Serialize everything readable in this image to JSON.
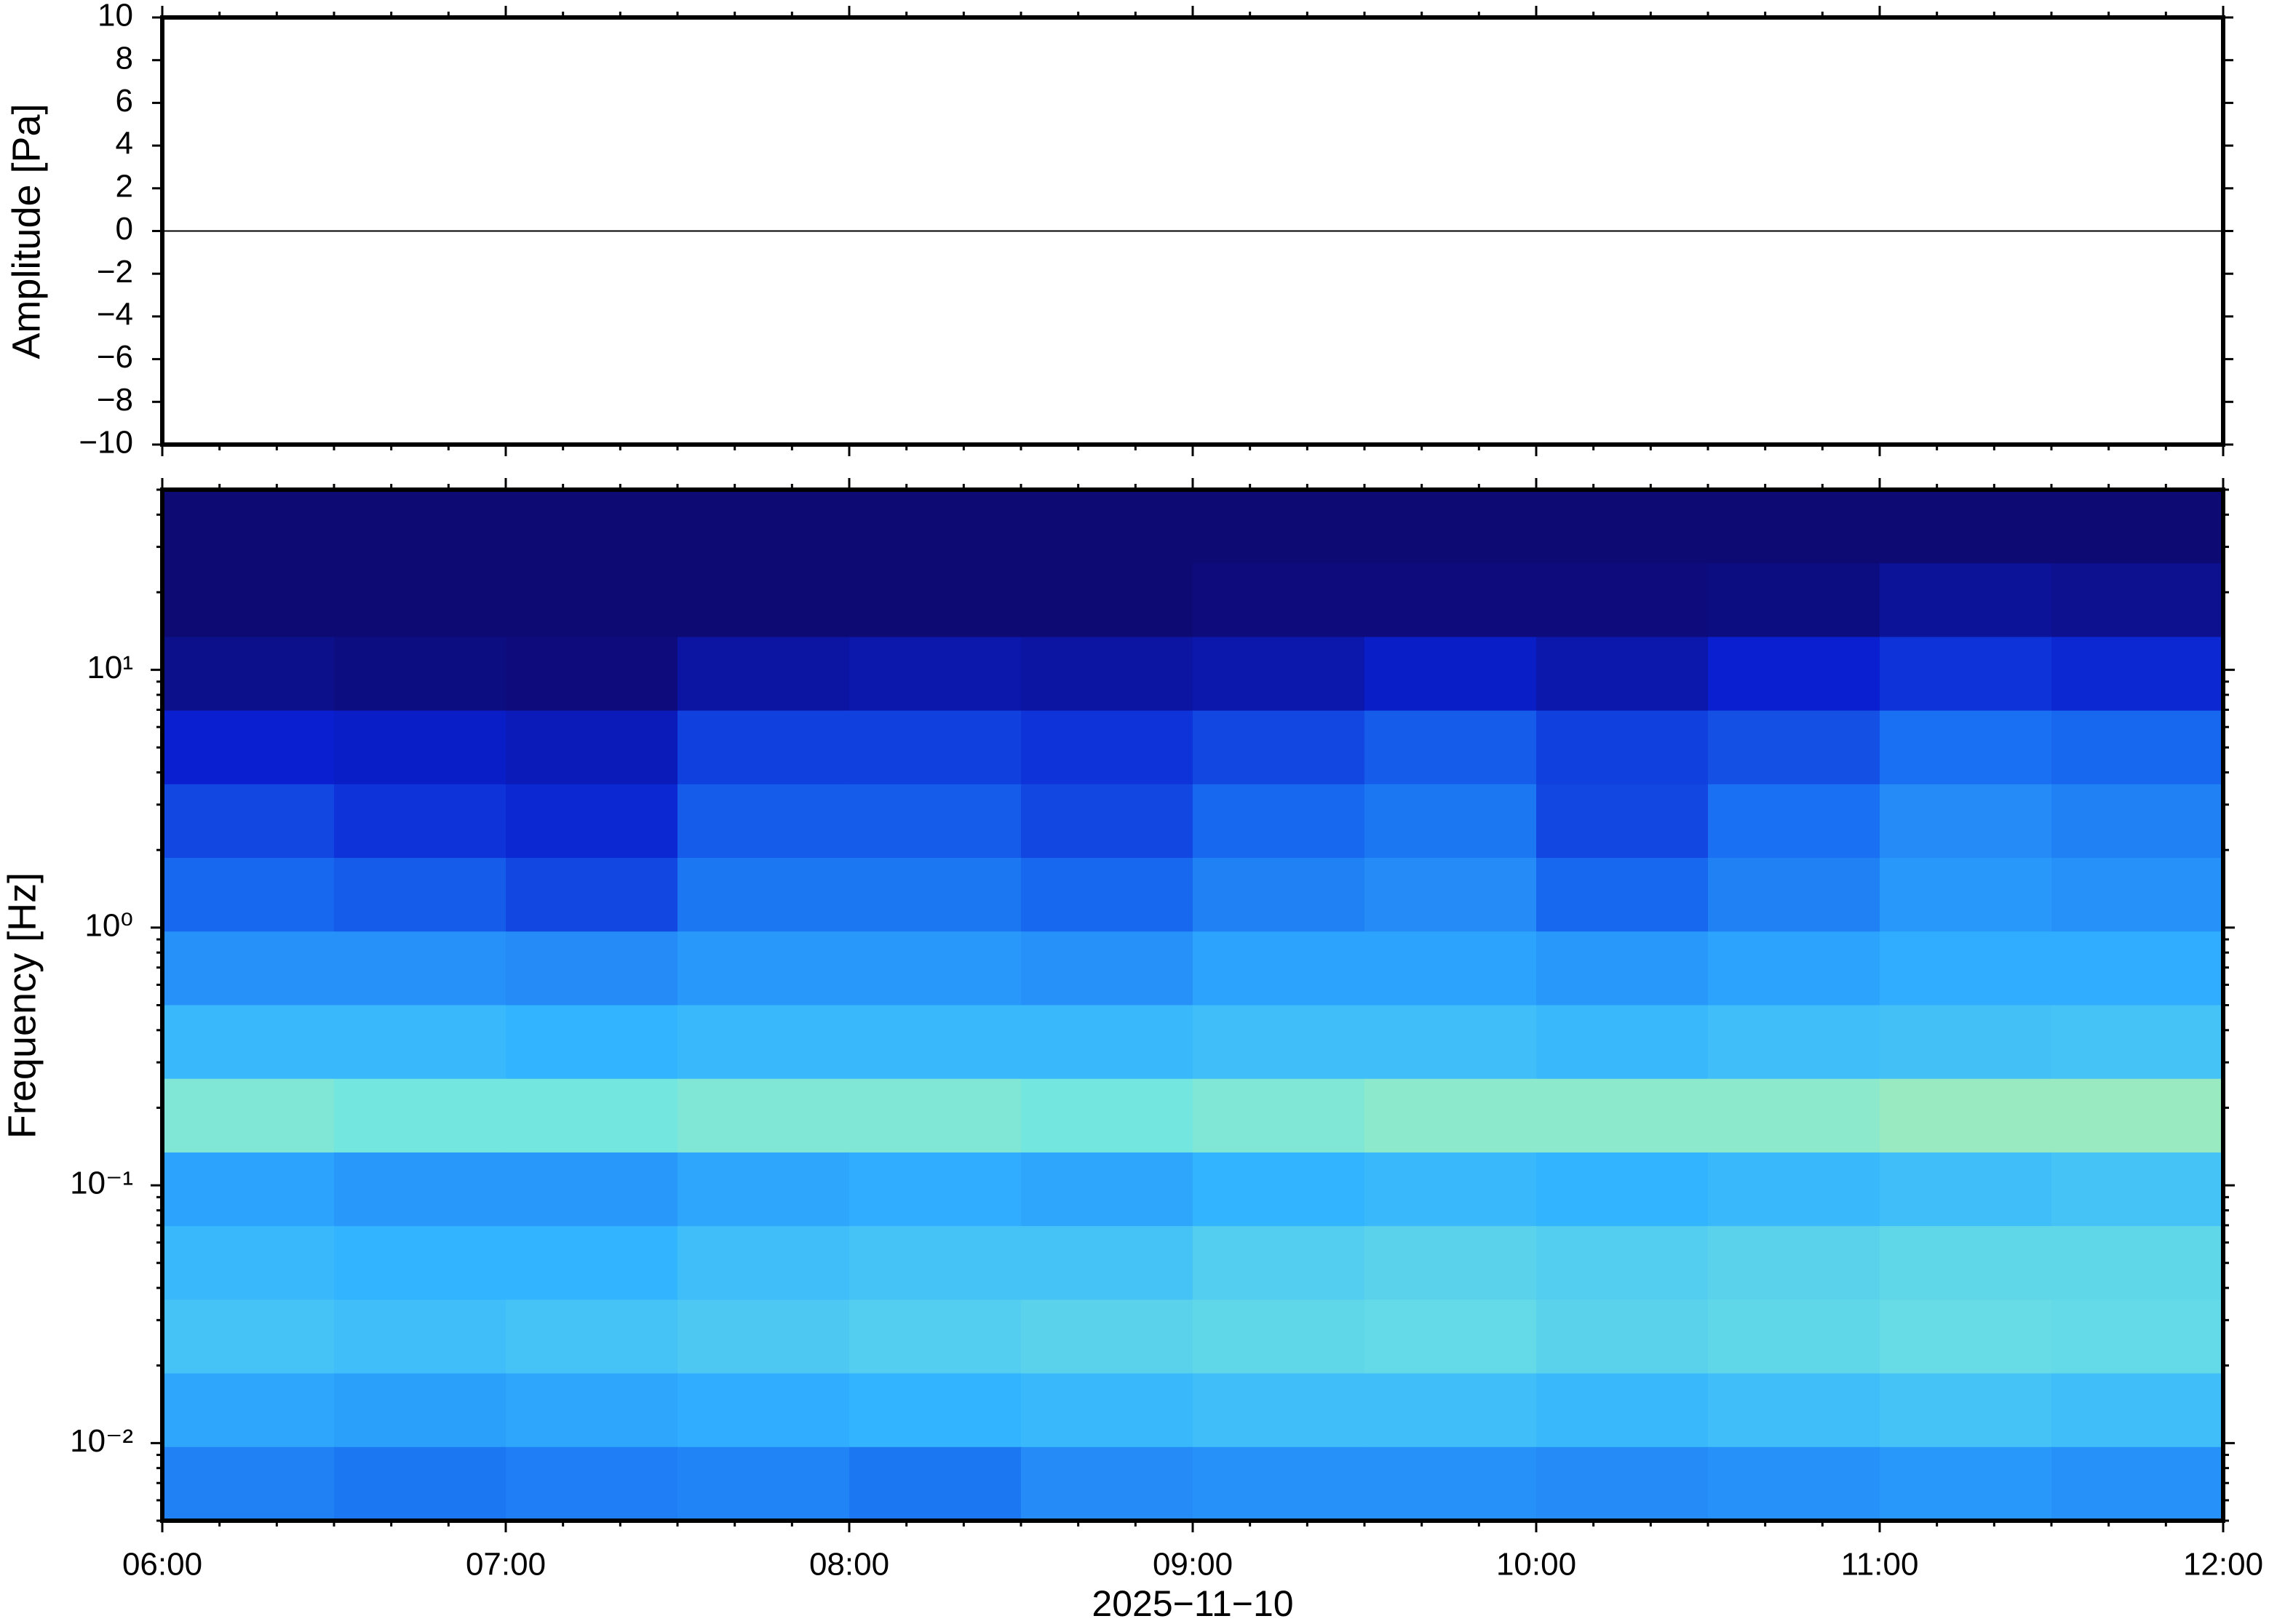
{
  "chart_data": [
    {
      "type": "line",
      "ylabel": "Amplitude [Pa]",
      "ylim": [
        -10,
        10
      ],
      "yticks": [
        {
          "value": -10,
          "label": "−10"
        },
        {
          "value": -8,
          "label": "−8"
        },
        {
          "value": -6,
          "label": "−6"
        },
        {
          "value": -4,
          "label": "−4"
        },
        {
          "value": -2,
          "label": "−2"
        },
        0,
        2,
        4,
        6,
        8,
        10
      ],
      "values": [
        0,
        0,
        0,
        0,
        0,
        0,
        0
      ],
      "color": "#000000"
    },
    {
      "type": "heatmap",
      "ylabel": "Frequency [Hz]",
      "xlabel": "2025−11−10",
      "xticks": [
        "06:00",
        "07:00",
        "08:00",
        "09:00",
        "10:00",
        "11:00",
        "12:00"
      ],
      "ylim": [
        0.005,
        50
      ],
      "log_y": true,
      "yticks": [
        {
          "value": 0.01,
          "label": "10⁻²"
        },
        {
          "value": 0.1,
          "label": "10⁻¹"
        },
        {
          "value": 1,
          "label": "10⁰"
        },
        {
          "value": 10,
          "label": "10¹"
        }
      ],
      "zlim": [
        0,
        1
      ],
      "colormap": [
        "#0e0a74",
        "#0a20d0",
        "#1a70f2",
        "#32b4ff",
        "#74e6e0",
        "#eef47a"
      ],
      "z": [
        [
          0,
          0,
          0,
          0,
          0,
          0,
          0,
          0,
          0,
          0,
          0,
          0
        ],
        [
          0,
          0,
          0,
          0,
          0,
          0,
          0.02,
          0.02,
          0.02,
          0.03,
          0.08,
          0.06
        ],
        [
          0.05,
          0.03,
          0.02,
          0.1,
          0.12,
          0.1,
          0.12,
          0.18,
          0.12,
          0.2,
          0.25,
          0.22
        ],
        [
          0.2,
          0.18,
          0.15,
          0.28,
          0.28,
          0.25,
          0.3,
          0.35,
          0.28,
          0.32,
          0.4,
          0.38
        ],
        [
          0.3,
          0.25,
          0.22,
          0.35,
          0.35,
          0.3,
          0.38,
          0.42,
          0.3,
          0.4,
          0.48,
          0.45
        ],
        [
          0.38,
          0.35,
          0.3,
          0.42,
          0.42,
          0.38,
          0.45,
          0.48,
          0.38,
          0.45,
          0.52,
          0.5
        ],
        [
          0.5,
          0.5,
          0.48,
          0.52,
          0.52,
          0.5,
          0.55,
          0.55,
          0.52,
          0.55,
          0.58,
          0.58
        ],
        [
          0.62,
          0.62,
          0.6,
          0.62,
          0.62,
          0.62,
          0.64,
          0.64,
          0.62,
          0.64,
          0.65,
          0.66
        ],
        [
          0.82,
          0.8,
          0.8,
          0.82,
          0.82,
          0.8,
          0.82,
          0.84,
          0.84,
          0.84,
          0.86,
          0.86
        ],
        [
          0.55,
          0.52,
          0.52,
          0.56,
          0.58,
          0.56,
          0.6,
          0.62,
          0.6,
          0.62,
          0.64,
          0.66
        ],
        [
          0.62,
          0.6,
          0.6,
          0.64,
          0.66,
          0.66,
          0.7,
          0.72,
          0.7,
          0.72,
          0.74,
          0.74
        ],
        [
          0.66,
          0.64,
          0.66,
          0.68,
          0.7,
          0.72,
          0.74,
          0.75,
          0.72,
          0.74,
          0.76,
          0.75
        ],
        [
          0.56,
          0.54,
          0.56,
          0.58,
          0.6,
          0.62,
          0.64,
          0.64,
          0.62,
          0.64,
          0.66,
          0.64
        ],
        [
          0.45,
          0.42,
          0.44,
          0.46,
          0.42,
          0.48,
          0.5,
          0.5,
          0.48,
          0.5,
          0.52,
          0.5
        ]
      ]
    }
  ]
}
